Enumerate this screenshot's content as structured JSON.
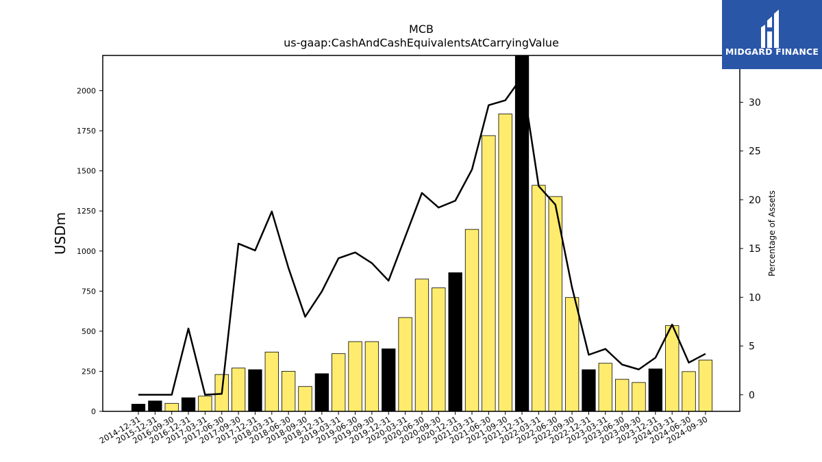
{
  "logo": {
    "text": "MIDGARD FINANCE"
  },
  "chart_data": {
    "type": "bar",
    "title": "MCB",
    "subtitle": "us-gaap:CashAndCashEquivalentsAtCarryingValue",
    "ylabel": "USDm",
    "ylabel_right": "Percentage of Assets",
    "ylim": [
      0,
      2220
    ],
    "ylim_right": [
      -1.7,
      34.8
    ],
    "yticks": [
      0,
      250,
      500,
      750,
      1000,
      1250,
      1500,
      1750,
      2000
    ],
    "yticks_right": [
      0,
      5,
      10,
      15,
      20,
      25,
      30
    ],
    "colors": {
      "year_end": "#000000",
      "quarter": "#ffec6e",
      "line": "#000000"
    },
    "categories": [
      "2014-12-31",
      "2015-12-31",
      "2016-09-30",
      "2016-12-31",
      "2017-03-31",
      "2017-06-30",
      "2017-09-30",
      "2017-12-31",
      "2018-03-31",
      "2018-06-30",
      "2018-09-30",
      "2018-12-31",
      "2019-03-31",
      "2019-06-30",
      "2019-09-30",
      "2019-12-31",
      "2020-03-31",
      "2020-06-30",
      "2020-09-30",
      "2020-12-31",
      "2021-03-31",
      "2021-06-30",
      "2021-09-30",
      "2021-12-31",
      "2022-03-31",
      "2022-06-30",
      "2022-09-30",
      "2022-12-31",
      "2023-03-31",
      "2023-06-30",
      "2023-09-30",
      "2023-12-31",
      "2024-03-31",
      "2024-06-30",
      "2024-09-30"
    ],
    "values": [
      45,
      65,
      50,
      85,
      95,
      230,
      270,
      260,
      370,
      250,
      155,
      235,
      360,
      435,
      435,
      390,
      585,
      825,
      770,
      865,
      1135,
      1720,
      1855,
      2220,
      1410,
      1340,
      710,
      260,
      300,
      200,
      180,
      265,
      535,
      248,
      320
    ],
    "year_end": [
      true,
      true,
      false,
      true,
      false,
      false,
      false,
      true,
      false,
      false,
      false,
      true,
      false,
      false,
      false,
      true,
      false,
      false,
      false,
      true,
      false,
      false,
      false,
      true,
      false,
      false,
      false,
      true,
      false,
      false,
      false,
      true,
      false,
      false,
      false
    ],
    "pct_assets": [
      0,
      0,
      0,
      6.8,
      0,
      0.1,
      15.5,
      14.8,
      18.8,
      13,
      8,
      10.6,
      14,
      14.6,
      13.5,
      11.7,
      16.2,
      20.7,
      19.2,
      19.9,
      23.1,
      29.7,
      30.2,
      32.6,
      21.4,
      19.5,
      11,
      4.1,
      4.7,
      3.1,
      2.6,
      3.8,
      7.2,
      3.3,
      4.2
    ]
  }
}
